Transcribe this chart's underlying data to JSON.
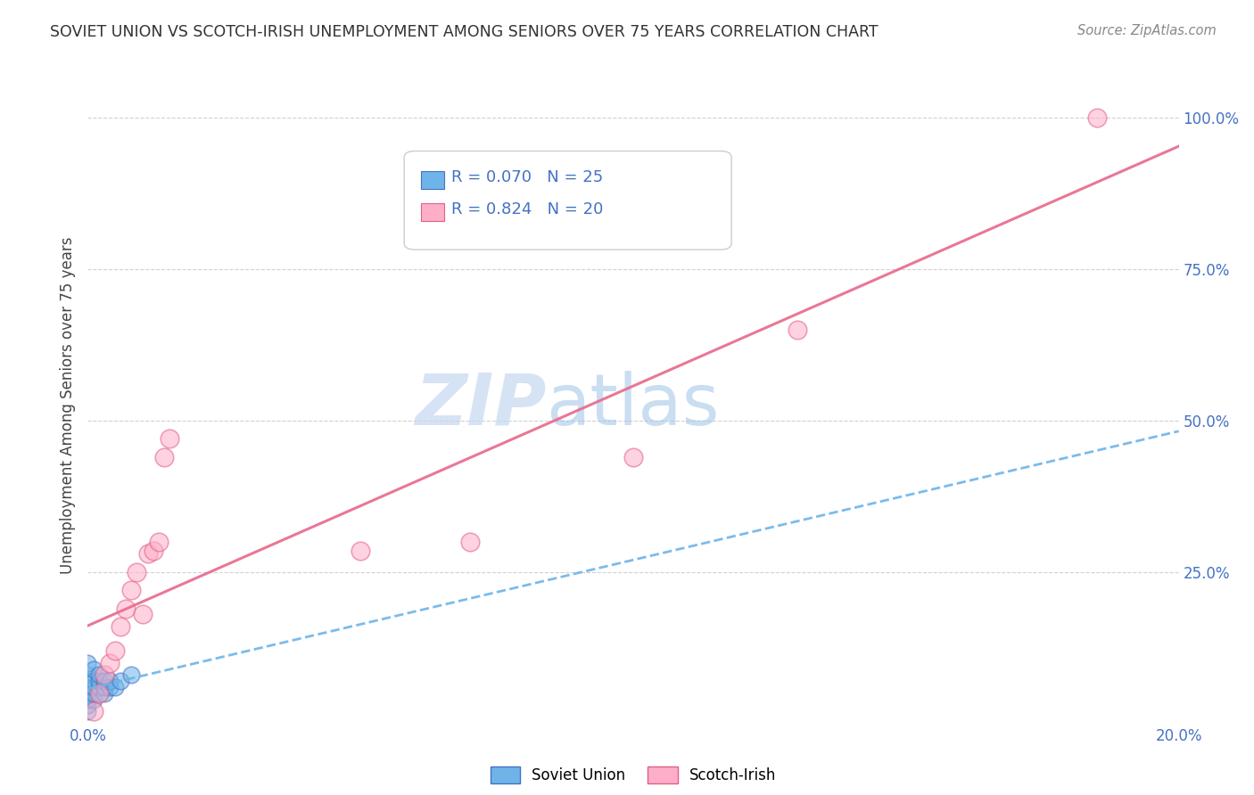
{
  "title": "SOVIET UNION VS SCOTCH-IRISH UNEMPLOYMENT AMONG SENIORS OVER 75 YEARS CORRELATION CHART",
  "source": "Source: ZipAtlas.com",
  "ylabel": "Unemployment Among Seniors over 75 years",
  "xlim": [
    0.0,
    0.2
  ],
  "ylim": [
    0.0,
    1.05
  ],
  "x_ticks": [
    0.0,
    0.025,
    0.05,
    0.075,
    0.1,
    0.125,
    0.15,
    0.175,
    0.2
  ],
  "y_ticks": [
    0.0,
    0.25,
    0.5,
    0.75,
    1.0
  ],
  "y_tick_labels_right": [
    "",
    "25.0%",
    "50.0%",
    "75.0%",
    "100.0%"
  ],
  "soviet_R": 0.07,
  "soviet_N": 25,
  "scotch_R": 0.824,
  "scotch_N": 20,
  "soviet_color": "#6EB4E8",
  "soviet_edge_color": "#4472C4",
  "scotch_color": "#FFAEC9",
  "scotch_edge_color": "#E06080",
  "soviet_line_color": "#6EB4E8",
  "scotch_line_color": "#E87090",
  "watermark_zip": "ZIP",
  "watermark_atlas": "atlas",
  "background_color": "#FFFFFF",
  "grid_color": "#CCCCCC",
  "soviet_x": [
    0.0,
    0.0,
    0.0,
    0.0,
    0.0,
    0.0,
    0.0,
    0.0,
    0.001,
    0.001,
    0.001,
    0.001,
    0.001,
    0.002,
    0.002,
    0.002,
    0.002,
    0.003,
    0.003,
    0.003,
    0.004,
    0.004,
    0.005,
    0.006,
    0.008
  ],
  "soviet_y": [
    0.02,
    0.03,
    0.04,
    0.05,
    0.06,
    0.07,
    0.08,
    0.1,
    0.04,
    0.05,
    0.06,
    0.07,
    0.09,
    0.05,
    0.06,
    0.07,
    0.08,
    0.05,
    0.06,
    0.07,
    0.06,
    0.07,
    0.06,
    0.07,
    0.08
  ],
  "scotch_x": [
    0.001,
    0.002,
    0.003,
    0.004,
    0.005,
    0.006,
    0.007,
    0.008,
    0.009,
    0.01,
    0.011,
    0.012,
    0.013,
    0.014,
    0.015,
    0.05,
    0.07,
    0.1,
    0.13,
    0.185
  ],
  "scotch_y": [
    0.02,
    0.05,
    0.08,
    0.1,
    0.12,
    0.16,
    0.19,
    0.22,
    0.25,
    0.18,
    0.28,
    0.285,
    0.3,
    0.44,
    0.47,
    0.285,
    0.3,
    0.44,
    0.65,
    1.0
  ]
}
